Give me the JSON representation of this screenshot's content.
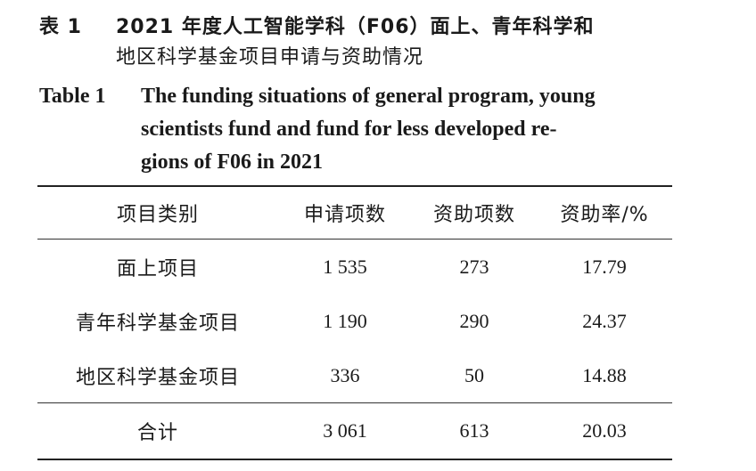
{
  "caption_cn": {
    "label": "表 1",
    "line1": "2021 年度人工智能学科（F06）面上、青年科学和",
    "line2": "地区科学基金项目申请与资助情况"
  },
  "caption_en": {
    "label": "Table 1",
    "line1": "The funding situations of general program, young",
    "line2": "scientists fund and fund for less developed re-",
    "line3": "gions of F06 in 2021"
  },
  "table": {
    "headers": [
      "项目类别",
      "申请项数",
      "资助项数",
      "资助率/%"
    ],
    "rows": [
      [
        "面上项目",
        "1 535",
        "273",
        "17.79"
      ],
      [
        "青年科学基金项目",
        "1 190",
        "290",
        "24.37"
      ],
      [
        "地区科学基金项目",
        "336",
        "50",
        "14.88"
      ]
    ],
    "total": [
      "合计",
      "3 061",
      "613",
      "20.03"
    ]
  }
}
